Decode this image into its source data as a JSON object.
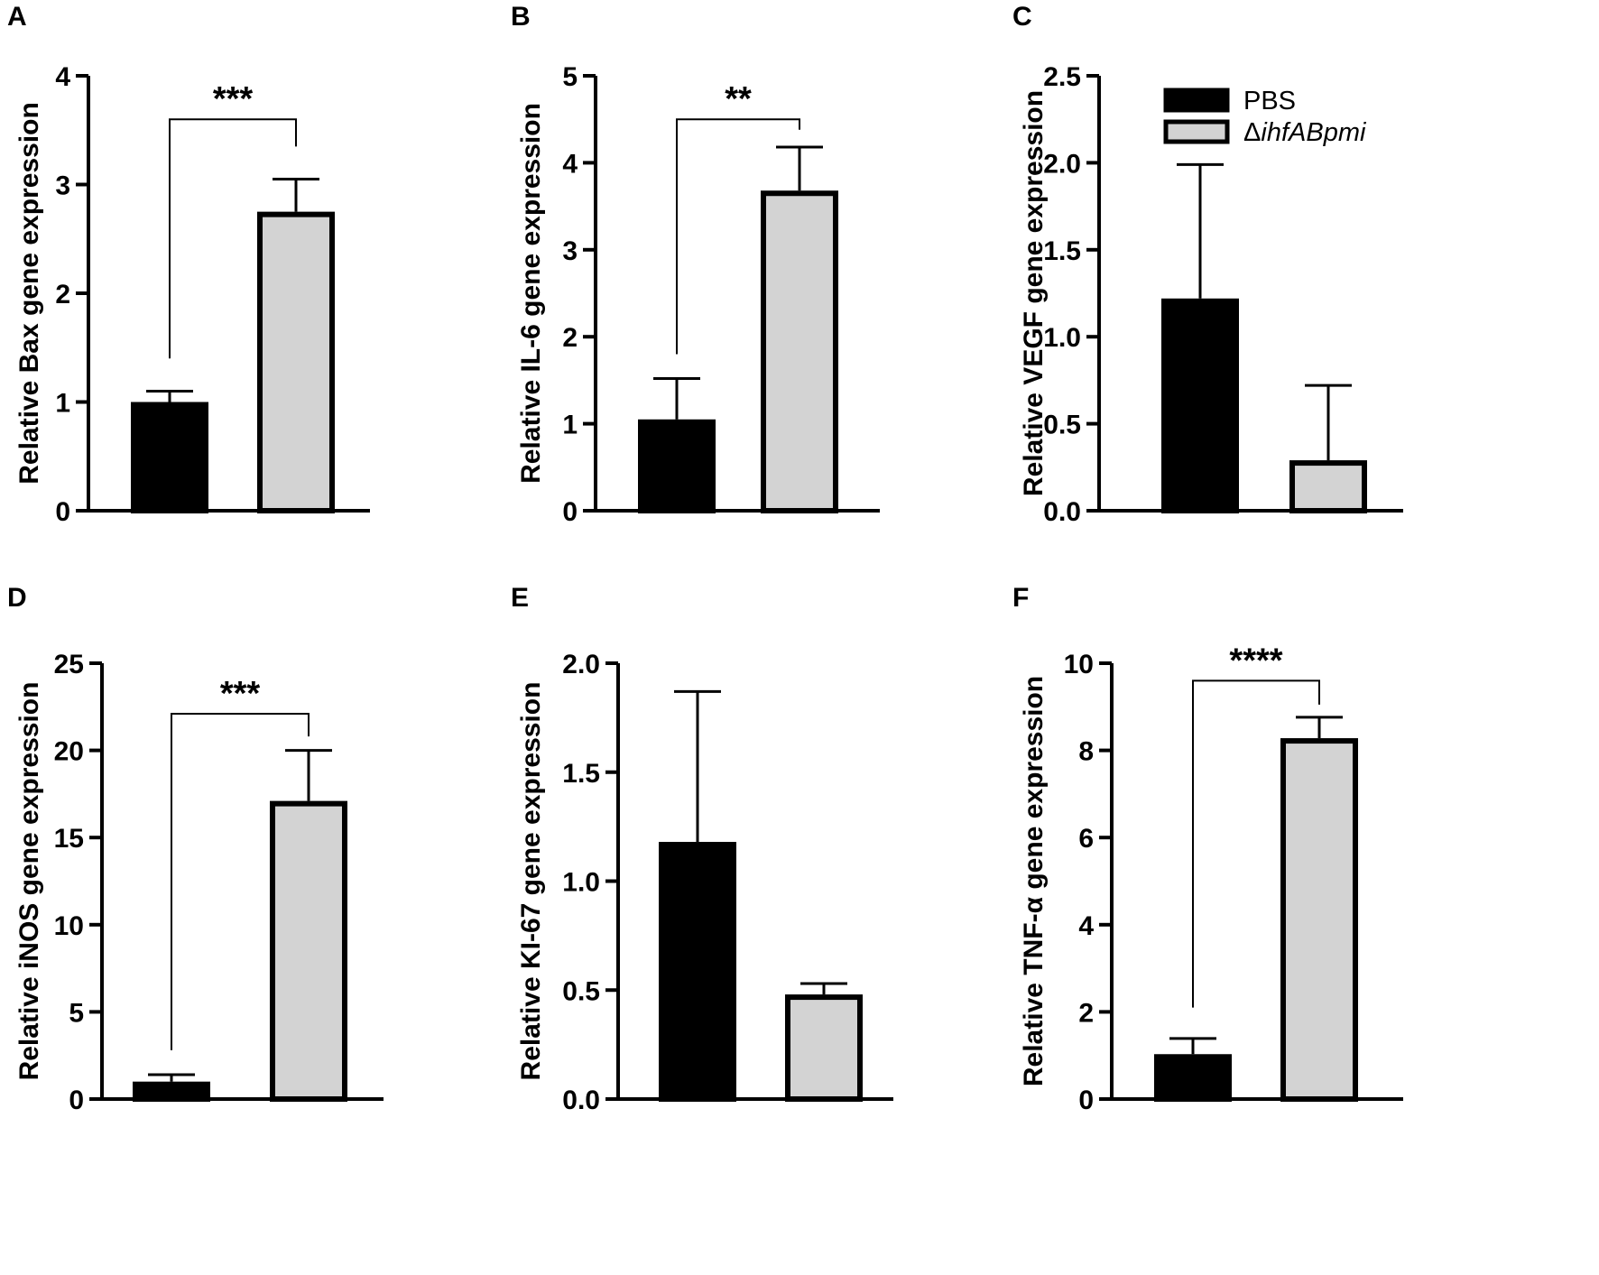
{
  "legend": [
    {
      "label": "PBS",
      "fill": "#000000"
    },
    {
      "label": "ΔihfABpmi",
      "fill": "#d3d3d3"
    }
  ],
  "colors": {
    "pbs": "#000000",
    "mutant": "#d3d3d3",
    "stroke": "#000000"
  },
  "chart_data": [
    {
      "panel": "A",
      "type": "bar",
      "ylabel": "Relative Bax gene expression",
      "ylim": [
        0,
        4
      ],
      "ticks": [
        "0",
        "1",
        "2",
        "3",
        "4"
      ],
      "series": [
        {
          "name": "PBS",
          "values": [
            1.0
          ],
          "error": [
            0.1
          ]
        },
        {
          "name": "ΔihfABpmi",
          "values": [
            2.75
          ],
          "error": [
            0.3
          ]
        }
      ],
      "significance": {
        "label": "***",
        "line_y": 3.6,
        "left_y": 1.4,
        "right_y": 3.35
      }
    },
    {
      "panel": "B",
      "type": "bar",
      "ylabel": "Relative IL-6 gene expression",
      "ylim": [
        0,
        5
      ],
      "ticks": [
        "0",
        "1",
        "2",
        "3",
        "4",
        "5"
      ],
      "series": [
        {
          "name": "PBS",
          "values": [
            1.05
          ],
          "error": [
            0.47
          ]
        },
        {
          "name": "ΔihfABpmi",
          "values": [
            3.68
          ],
          "error": [
            0.5
          ]
        }
      ],
      "significance": {
        "label": "**",
        "line_y": 4.5,
        "left_y": 1.8,
        "right_y": 4.38
      }
    },
    {
      "panel": "C",
      "type": "bar",
      "ylabel": "Relative VEGF gene expression",
      "ylim": [
        0,
        2.5
      ],
      "ticks": [
        "0.0",
        "0.5",
        "1.0",
        "1.5",
        "2.0",
        "2.5"
      ],
      "series": [
        {
          "name": "PBS",
          "values": [
            1.22
          ],
          "error": [
            0.77
          ]
        },
        {
          "name": "ΔihfABpmi",
          "values": [
            0.29
          ],
          "error": [
            0.43
          ]
        }
      ]
    },
    {
      "panel": "D",
      "type": "bar",
      "ylabel": "Relative iNOS gene expression",
      "ylim": [
        0,
        25
      ],
      "ticks": [
        "0",
        "5",
        "10",
        "15",
        "20",
        "25"
      ],
      "series": [
        {
          "name": "PBS",
          "values": [
            1.0
          ],
          "error": [
            0.4
          ]
        },
        {
          "name": "ΔihfABpmi",
          "values": [
            17.1
          ],
          "error": [
            2.9
          ]
        }
      ],
      "significance": {
        "label": "***",
        "line_y": 22.1,
        "left_y": 2.8,
        "right_y": 20.8
      }
    },
    {
      "panel": "E",
      "type": "bar",
      "ylabel": "Relative KI-67 gene expression",
      "ylim": [
        0,
        2.0
      ],
      "ticks": [
        "0.0",
        "0.5",
        "1.0",
        "1.5",
        "2.0"
      ],
      "series": [
        {
          "name": "PBS",
          "values": [
            1.18
          ],
          "error": [
            0.69
          ]
        },
        {
          "name": "ΔihfABpmi",
          "values": [
            0.48
          ],
          "error": [
            0.05
          ]
        }
      ]
    },
    {
      "panel": "F",
      "type": "bar",
      "ylabel": "Relative TNF-α gene expression",
      "ylim": [
        0,
        10
      ],
      "ticks": [
        "0",
        "2",
        "4",
        "6",
        "8",
        "10"
      ],
      "series": [
        {
          "name": "PBS",
          "values": [
            1.03
          ],
          "error": [
            0.36
          ]
        },
        {
          "name": "ΔihfABpmi",
          "values": [
            8.28
          ],
          "error": [
            0.48
          ]
        }
      ],
      "significance": {
        "label": "****",
        "line_y": 9.6,
        "left_y": 2.1,
        "right_y": 9.05
      }
    }
  ]
}
